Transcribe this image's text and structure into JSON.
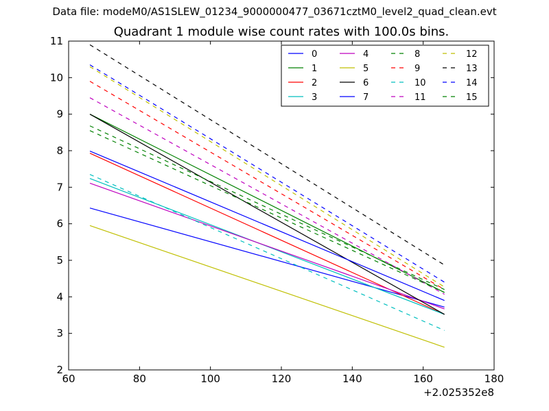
{
  "figure": {
    "suptitle": "Data file: modeM0/AS1SLEW_01234_9000000477_03671cztM0_level2_quad_clean.evt"
  },
  "chart_data": {
    "type": "line",
    "title": "Quadrant 1 module wise count rates with 100.0s bins.",
    "xlabel": "",
    "ylabel": "",
    "x_offset_label": "+2.025352e8",
    "xlim": [
      60,
      180
    ],
    "ylim": [
      2,
      11
    ],
    "xticks": [
      60,
      80,
      100,
      120,
      140,
      160,
      180
    ],
    "yticks": [
      2,
      3,
      4,
      5,
      6,
      7,
      8,
      9,
      10,
      11
    ],
    "grid": false,
    "legend_position": "top-right",
    "legend_columns": 4,
    "x": [
      66,
      166
    ],
    "series": [
      {
        "name": "0",
        "values": [
          6.43,
          3.72
        ],
        "color": "#0000ff",
        "dash": "solid"
      },
      {
        "name": "1",
        "values": [
          9.0,
          4.12
        ],
        "color": "#008000",
        "dash": "solid"
      },
      {
        "name": "2",
        "values": [
          7.93,
          3.52
        ],
        "color": "#ff0000",
        "dash": "solid"
      },
      {
        "name": "3",
        "values": [
          7.24,
          3.52
        ],
        "color": "#00bfbf",
        "dash": "solid"
      },
      {
        "name": "4",
        "values": [
          7.11,
          3.67
        ],
        "color": "#bf00bf",
        "dash": "solid"
      },
      {
        "name": "5",
        "values": [
          5.95,
          2.62
        ],
        "color": "#bfbf00",
        "dash": "solid"
      },
      {
        "name": "6",
        "values": [
          9.0,
          3.52
        ],
        "color": "#000000",
        "dash": "solid"
      },
      {
        "name": "7",
        "values": [
          7.99,
          3.9
        ],
        "color": "#0000ff",
        "dash": "solid"
      },
      {
        "name": "8",
        "values": [
          8.68,
          4.2
        ],
        "color": "#008000",
        "dash": "dashed"
      },
      {
        "name": "9",
        "values": [
          9.9,
          4.2
        ],
        "color": "#ff0000",
        "dash": "dashed"
      },
      {
        "name": "10",
        "values": [
          7.35,
          3.08
        ],
        "color": "#00bfbf",
        "dash": "dashed"
      },
      {
        "name": "11",
        "values": [
          9.45,
          4.07
        ],
        "color": "#bf00bf",
        "dash": "dashed"
      },
      {
        "name": "12",
        "values": [
          10.3,
          4.27
        ],
        "color": "#bfbf00",
        "dash": "dashed"
      },
      {
        "name": "13",
        "values": [
          10.9,
          4.87
        ],
        "color": "#000000",
        "dash": "dashed"
      },
      {
        "name": "14",
        "values": [
          10.35,
          4.4
        ],
        "color": "#0000ff",
        "dash": "dashed"
      },
      {
        "name": "15",
        "values": [
          8.55,
          4.12
        ],
        "color": "#008000",
        "dash": "dashed"
      }
    ]
  }
}
